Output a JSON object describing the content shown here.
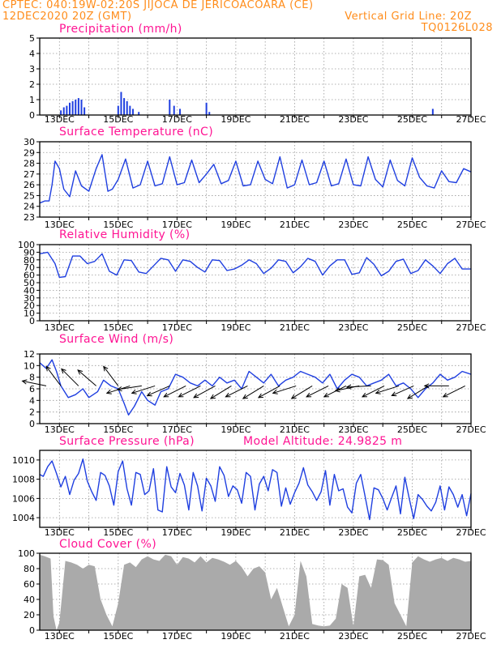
{
  "header": {
    "line1": "CPTEC:   040:19W-02:20S   JIJOCA DE JERICOACOARA (CE)",
    "line2_left": "12DEC2020 20Z (GMT)",
    "line2_right": "Vertical Grid Line: 20Z",
    "line3_right": "TQ0126L028"
  },
  "colors": {
    "header": "#ff8c1a",
    "panel_title": "#ff1493",
    "line": "#1f3fe0",
    "cloud_fill": "#aaaaaa",
    "wind_arrow": "#000000"
  },
  "x_ticks": [
    "13DEC",
    "15DEC",
    "17DEC",
    "19DEC",
    "21DEC",
    "23DEC",
    "25DEC",
    "27DEC"
  ],
  "chart_data": [
    {
      "type": "bar",
      "title": "Precipitation (mm/h)",
      "ylim": [
        0,
        5
      ],
      "yticks": [
        "0",
        "1",
        "2",
        "3",
        "4",
        "5"
      ],
      "x_day_range": [
        12.33,
        27.0
      ],
      "points": [
        [
          13.05,
          0.3
        ],
        [
          13.15,
          0.5
        ],
        [
          13.25,
          0.6
        ],
        [
          13.35,
          0.8
        ],
        [
          13.45,
          0.9
        ],
        [
          13.55,
          1.0
        ],
        [
          13.65,
          1.1
        ],
        [
          13.75,
          1.0
        ],
        [
          13.85,
          0.5
        ],
        [
          15.0,
          0.6
        ],
        [
          15.1,
          1.5
        ],
        [
          15.2,
          1.1
        ],
        [
          15.3,
          0.9
        ],
        [
          15.4,
          0.6
        ],
        [
          15.5,
          0.4
        ],
        [
          15.7,
          0.2
        ],
        [
          16.75,
          1.0
        ],
        [
          16.9,
          0.6
        ],
        [
          17.1,
          0.4
        ],
        [
          18.0,
          0.8
        ],
        [
          18.1,
          0.2
        ],
        [
          25.7,
          0.4
        ]
      ]
    },
    {
      "type": "line",
      "title": "Surface Temperature (nC)",
      "ylim": [
        23,
        30
      ],
      "yticks": [
        "23",
        "24",
        "25",
        "26",
        "27",
        "28",
        "29",
        "30"
      ],
      "x_day_range": [
        12.33,
        27.0
      ],
      "x": [
        12.33,
        12.5,
        12.65,
        12.75,
        12.85,
        13.0,
        13.15,
        13.35,
        13.55,
        13.75,
        14.0,
        14.25,
        14.45,
        14.65,
        14.8,
        15.0,
        15.25,
        15.5,
        15.75,
        16.0,
        16.25,
        16.5,
        16.75,
        17.0,
        17.25,
        17.5,
        17.75,
        18.0,
        18.25,
        18.5,
        18.75,
        19.0,
        19.25,
        19.5,
        19.75,
        20.0,
        20.25,
        20.5,
        20.75,
        21.0,
        21.25,
        21.5,
        21.75,
        22.0,
        22.25,
        22.5,
        22.75,
        23.0,
        23.25,
        23.5,
        23.75,
        24.0,
        24.25,
        24.5,
        24.75,
        25.0,
        25.25,
        25.5,
        25.75,
        26.0,
        26.25,
        26.5,
        26.75,
        27.0
      ],
      "y": [
        24.3,
        24.5,
        24.5,
        26.0,
        28.2,
        27.5,
        25.6,
        24.9,
        27.3,
        25.9,
        25.4,
        27.5,
        28.8,
        25.4,
        25.6,
        26.5,
        28.4,
        25.7,
        26.0,
        28.2,
        25.9,
        26.1,
        28.6,
        26.0,
        26.2,
        28.3,
        26.2,
        27.0,
        27.9,
        26.1,
        26.4,
        28.2,
        25.9,
        26.0,
        28.2,
        26.5,
        26.1,
        28.6,
        25.7,
        26.0,
        28.3,
        26.0,
        26.2,
        28.2,
        25.9,
        26.1,
        28.4,
        26.0,
        25.9,
        28.6,
        26.5,
        25.8,
        28.3,
        26.4,
        25.9,
        28.5,
        26.7,
        25.9,
        25.7,
        27.3,
        26.3,
        26.2,
        27.5,
        27.2
      ]
    },
    {
      "type": "line",
      "title": "Relative Humidity (%)",
      "ylim": [
        0,
        100
      ],
      "yticks": [
        "0",
        "10",
        "20",
        "30",
        "40",
        "50",
        "60",
        "70",
        "80",
        "90",
        "100"
      ],
      "x_day_range": [
        12.33,
        27.0
      ],
      "x": [
        12.33,
        12.6,
        12.85,
        13.0,
        13.2,
        13.45,
        13.7,
        13.95,
        14.2,
        14.45,
        14.7,
        14.95,
        15.2,
        15.45,
        15.7,
        15.95,
        16.2,
        16.45,
        16.7,
        16.95,
        17.2,
        17.45,
        17.7,
        17.95,
        18.2,
        18.45,
        18.7,
        18.95,
        19.2,
        19.45,
        19.7,
        19.95,
        20.2,
        20.45,
        20.7,
        20.95,
        21.2,
        21.45,
        21.7,
        21.95,
        22.2,
        22.45,
        22.7,
        22.95,
        23.2,
        23.45,
        23.7,
        23.95,
        24.2,
        24.45,
        24.7,
        24.95,
        25.2,
        25.45,
        25.7,
        25.95,
        26.2,
        26.45,
        26.7,
        27.0
      ],
      "y": [
        88,
        90,
        75,
        57,
        58,
        85,
        85,
        75,
        78,
        88,
        65,
        60,
        80,
        79,
        64,
        62,
        72,
        82,
        80,
        65,
        80,
        78,
        70,
        64,
        80,
        79,
        66,
        68,
        73,
        80,
        75,
        62,
        69,
        80,
        78,
        63,
        71,
        82,
        78,
        60,
        72,
        80,
        80,
        61,
        63,
        83,
        74,
        59,
        65,
        78,
        81,
        62,
        66,
        80,
        72,
        62,
        75,
        82,
        68,
        68
      ]
    },
    {
      "type": "line",
      "title": "Surface Wind (m/s)",
      "ylim": [
        0,
        12
      ],
      "yticks": [
        "0",
        "2",
        "4",
        "6",
        "8",
        "10",
        "12"
      ],
      "x_day_range": [
        12.33,
        27.0
      ],
      "x": [
        12.33,
        12.55,
        12.75,
        12.9,
        13.05,
        13.3,
        13.55,
        13.8,
        14.0,
        14.3,
        14.5,
        14.75,
        15.0,
        15.2,
        15.35,
        15.55,
        15.8,
        16.0,
        16.25,
        16.45,
        16.7,
        16.95,
        17.2,
        17.45,
        17.7,
        17.95,
        18.2,
        18.45,
        18.7,
        18.95,
        19.2,
        19.45,
        19.7,
        19.95,
        20.2,
        20.45,
        20.7,
        20.95,
        21.2,
        21.45,
        21.7,
        21.95,
        22.2,
        22.45,
        22.7,
        22.95,
        23.2,
        23.45,
        23.7,
        23.95,
        24.2,
        24.45,
        24.7,
        24.95,
        25.2,
        25.45,
        25.7,
        25.95,
        26.2,
        26.45,
        26.7,
        27.0
      ],
      "y": [
        10.5,
        9.5,
        11.0,
        9.0,
        6.5,
        4.5,
        5.0,
        6.0,
        4.5,
        5.5,
        7.5,
        6.5,
        6.0,
        3.5,
        1.5,
        3.0,
        5.5,
        4.0,
        3.2,
        5.5,
        6.0,
        8.5,
        8.0,
        7.0,
        6.5,
        7.5,
        6.5,
        8.0,
        7.0,
        7.5,
        6.0,
        9.0,
        8.0,
        7.0,
        8.5,
        6.5,
        7.5,
        8.0,
        9.0,
        8.5,
        8.0,
        7.0,
        8.5,
        6.0,
        7.5,
        8.5,
        8.0,
        6.5,
        7.0,
        7.5,
        8.5,
        6.5,
        7.0,
        6.0,
        4.5,
        6.0,
        7.0,
        8.5,
        7.5,
        8.0,
        9.0,
        8.5
      ],
      "arrows": [
        [
          12.55,
          -0.98,
          -0.2
        ],
        [
          13.05,
          -0.6,
          -0.8
        ],
        [
          13.65,
          -0.7,
          -0.7
        ],
        [
          14.25,
          -0.75,
          -0.65
        ],
        [
          15.0,
          -0.6,
          -0.8
        ],
        [
          15.4,
          -0.95,
          0.3
        ],
        [
          15.8,
          -1.0,
          0.15
        ],
        [
          16.25,
          -0.95,
          0.3
        ],
        [
          16.75,
          -0.92,
          0.4
        ],
        [
          17.3,
          -0.9,
          0.45
        ],
        [
          17.8,
          -0.9,
          0.45
        ],
        [
          18.3,
          -0.88,
          0.48
        ],
        [
          18.85,
          -0.85,
          0.52
        ],
        [
          19.4,
          -0.9,
          0.45
        ],
        [
          19.95,
          -0.85,
          0.52
        ],
        [
          20.5,
          -0.88,
          0.48
        ],
        [
          21.05,
          -0.95,
          0.3
        ],
        [
          21.6,
          -0.85,
          0.52
        ],
        [
          22.15,
          -0.9,
          0.45
        ],
        [
          22.75,
          -0.9,
          0.45
        ],
        [
          23.2,
          -0.98,
          0.2
        ],
        [
          23.6,
          -1.0,
          0.05
        ],
        [
          24.05,
          -0.9,
          0.45
        ],
        [
          24.55,
          -0.95,
          0.3
        ],
        [
          25.05,
          -0.9,
          0.4
        ],
        [
          25.55,
          -0.85,
          0.52
        ],
        [
          26.25,
          -1.0,
          0.0
        ],
        [
          26.8,
          -0.9,
          0.45
        ]
      ]
    },
    {
      "type": "line",
      "title": "Surface Pressure (hPa)",
      "subtitle": "Model Altitude: 24.9825 m",
      "ylim": [
        1003,
        1011
      ],
      "yticks": [
        "1004",
        "1006",
        "1008",
        "1010"
      ],
      "x_day_range": [
        12.33,
        27.0
      ],
      "x": [
        12.33,
        12.45,
        12.6,
        12.75,
        12.9,
        13.05,
        13.2,
        13.35,
        13.5,
        13.65,
        13.8,
        13.95,
        14.1,
        14.25,
        14.4,
        14.55,
        14.7,
        14.85,
        15.0,
        15.15,
        15.3,
        15.45,
        15.6,
        15.75,
        15.9,
        16.05,
        16.2,
        16.35,
        16.5,
        16.65,
        16.8,
        16.95,
        17.1,
        17.25,
        17.4,
        17.55,
        17.7,
        17.85,
        18.0,
        18.15,
        18.3,
        18.45,
        18.6,
        18.75,
        18.9,
        19.05,
        19.2,
        19.35,
        19.5,
        19.65,
        19.8,
        19.95,
        20.1,
        20.25,
        20.4,
        20.55,
        20.7,
        20.85,
        21.0,
        21.15,
        21.3,
        21.45,
        21.6,
        21.75,
        21.9,
        22.05,
        22.2,
        22.35,
        22.5,
        22.65,
        22.8,
        22.95,
        23.1,
        23.25,
        23.4,
        23.55,
        23.7,
        23.85,
        24.0,
        24.15,
        24.3,
        24.45,
        24.6,
        24.75,
        24.9,
        25.05,
        25.2,
        25.35,
        25.5,
        25.65,
        25.8,
        25.95,
        26.1,
        26.25,
        26.4,
        26.55,
        26.7,
        26.85,
        27.0
      ],
      "y": [
        1008.5,
        1008.3,
        1009.3,
        1009.9,
        1008.6,
        1007.2,
        1008.3,
        1006.4,
        1007.9,
        1008.6,
        1010.1,
        1007.8,
        1006.7,
        1005.8,
        1008.7,
        1008.4,
        1007.3,
        1005.3,
        1008.8,
        1009.9,
        1007.0,
        1005.3,
        1008.7,
        1008.5,
        1006.4,
        1006.8,
        1009.1,
        1004.8,
        1004.6,
        1009.3,
        1007.2,
        1006.6,
        1008.6,
        1007.4,
        1004.8,
        1008.7,
        1007.3,
        1004.7,
        1008.1,
        1007.3,
        1005.7,
        1009.3,
        1008.4,
        1006.2,
        1007.3,
        1006.9,
        1005.5,
        1008.7,
        1008.3,
        1004.8,
        1007.5,
        1008.3,
        1006.8,
        1009.0,
        1008.7,
        1005.2,
        1007.1,
        1005.4,
        1006.6,
        1007.6,
        1009.2,
        1007.4,
        1006.7,
        1005.8,
        1006.7,
        1008.9,
        1005.3,
        1008.5,
        1006.8,
        1007.0,
        1005.1,
        1004.5,
        1007.6,
        1008.5,
        1006.2,
        1003.8,
        1007.1,
        1006.9,
        1006.0,
        1004.8,
        1006.1,
        1007.3,
        1004.4,
        1008.2,
        1006.0,
        1003.9,
        1006.4,
        1005.9,
        1005.2,
        1004.7,
        1005.6,
        1007.3,
        1004.8,
        1007.2,
        1006.4,
        1005.1,
        1006.4,
        1004.2,
        1006.5
      ]
    },
    {
      "type": "area",
      "title": "Cloud Cover (%)",
      "ylim": [
        0,
        100
      ],
      "yticks": [
        "0",
        "20",
        "40",
        "60",
        "80",
        "100"
      ],
      "x_day_range": [
        12.33,
        27.0
      ],
      "x": [
        12.33,
        12.5,
        12.7,
        12.8,
        12.9,
        13.0,
        13.2,
        13.4,
        13.6,
        13.8,
        14.0,
        14.2,
        14.4,
        14.6,
        14.8,
        15.0,
        15.2,
        15.4,
        15.6,
        15.8,
        16.0,
        16.2,
        16.4,
        16.6,
        16.8,
        17.0,
        17.2,
        17.4,
        17.6,
        17.8,
        18.0,
        18.2,
        18.4,
        18.6,
        18.8,
        19.0,
        19.2,
        19.4,
        19.6,
        19.8,
        20.0,
        20.2,
        20.4,
        20.6,
        20.8,
        21.0,
        21.2,
        21.4,
        21.6,
        21.8,
        22.0,
        22.2,
        22.4,
        22.6,
        22.8,
        23.0,
        23.2,
        23.4,
        23.6,
        23.8,
        24.0,
        24.2,
        24.4,
        24.6,
        24.8,
        25.0,
        25.2,
        25.4,
        25.6,
        25.8,
        26.0,
        26.2,
        26.4,
        26.6,
        26.8,
        27.0
      ],
      "y": [
        98,
        96,
        93,
        18,
        0,
        10,
        90,
        88,
        85,
        80,
        85,
        83,
        40,
        20,
        5,
        35,
        85,
        88,
        82,
        92,
        96,
        92,
        90,
        98,
        96,
        85,
        95,
        93,
        88,
        96,
        88,
        94,
        92,
        89,
        85,
        90,
        82,
        70,
        80,
        83,
        75,
        40,
        55,
        30,
        5,
        20,
        90,
        70,
        8,
        6,
        5,
        6,
        15,
        60,
        55,
        5,
        70,
        72,
        55,
        92,
        91,
        85,
        35,
        20,
        5,
        88,
        96,
        92,
        89,
        92,
        94,
        90,
        94,
        92,
        89,
        90
      ]
    }
  ]
}
